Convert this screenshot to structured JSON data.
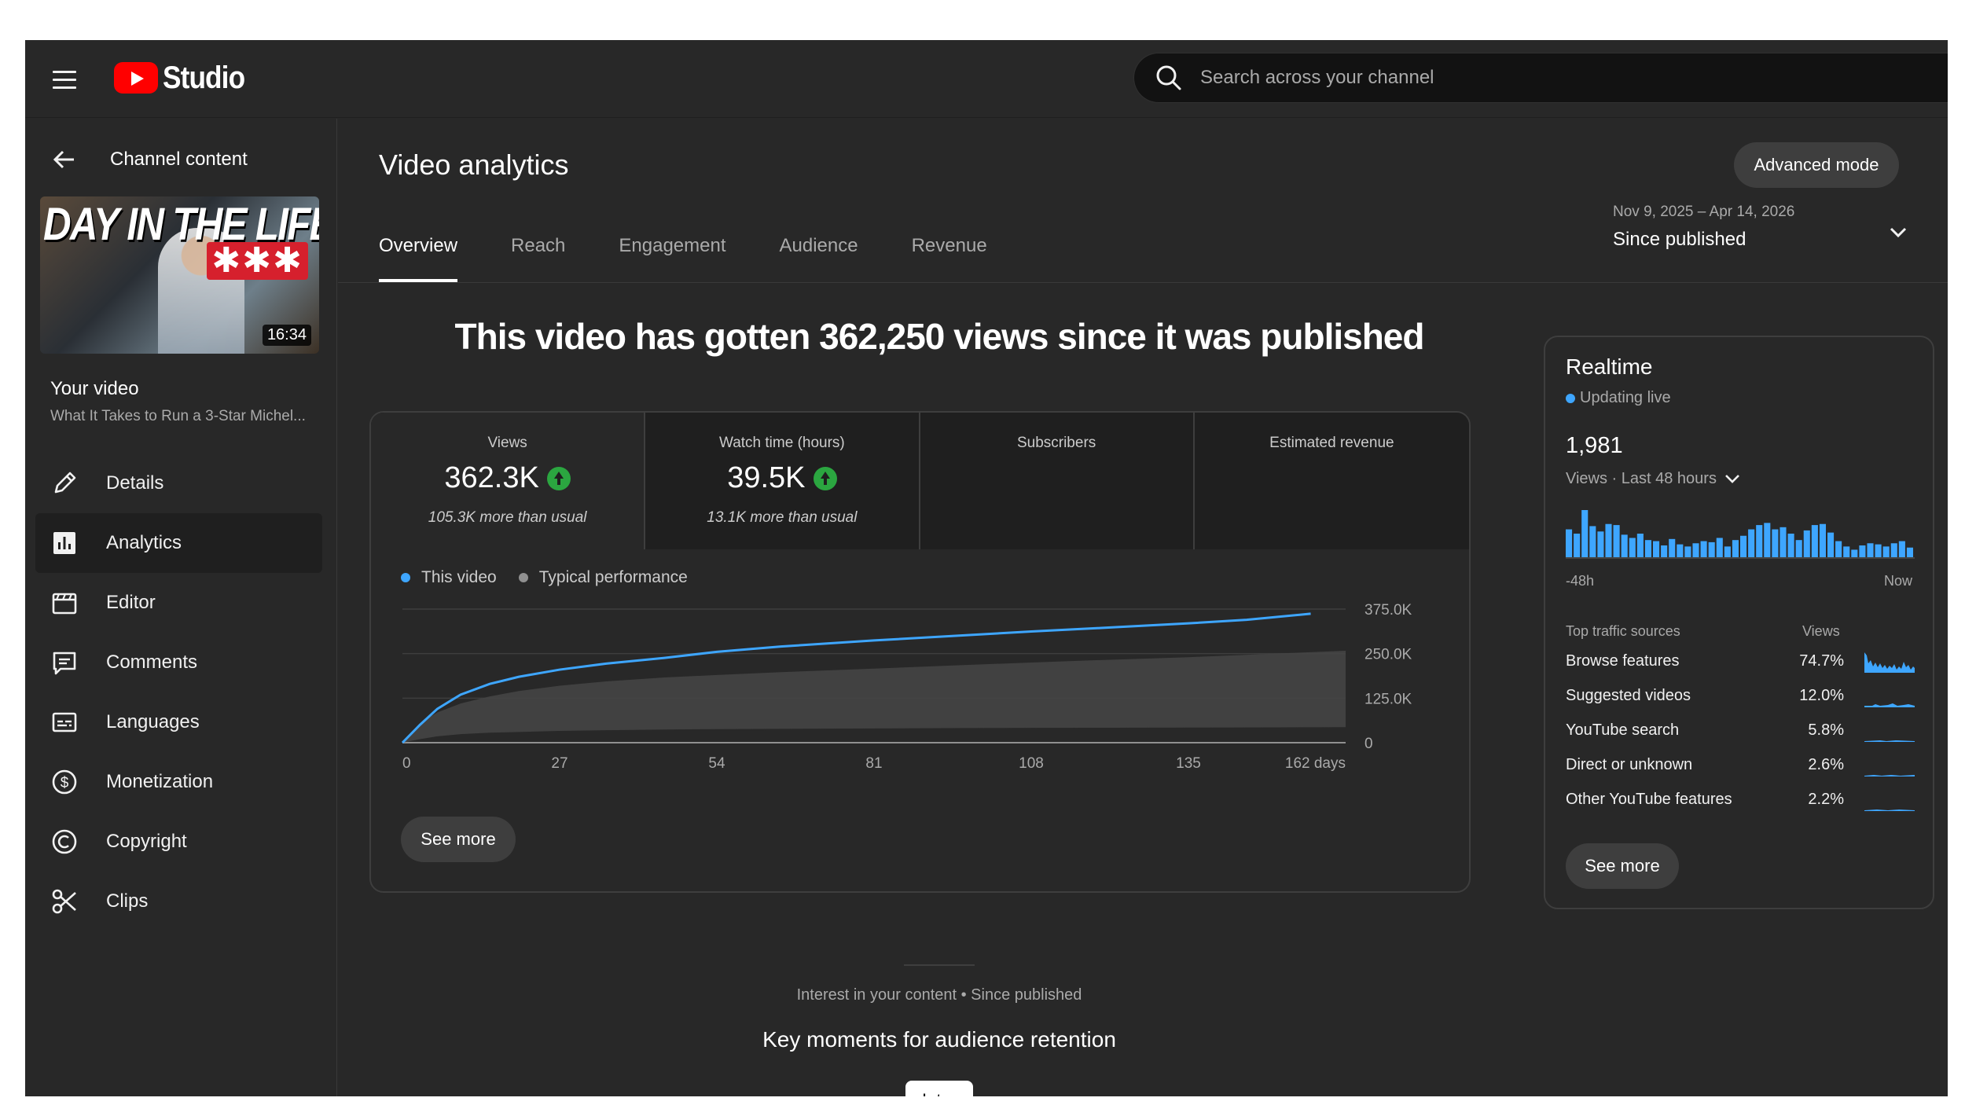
{
  "app": {
    "brand": "Studio"
  },
  "search": {
    "placeholder": "Search across your channel"
  },
  "sidebar": {
    "back_label": "Channel content",
    "thumbnail": {
      "title_text": "DAY IN THE LIFE",
      "stars": "✱✱✱",
      "duration": "16:34"
    },
    "your_video_label": "Your video",
    "video_title": "What It Takes to Run a 3-Star Michel...",
    "items": [
      {
        "label": "Details",
        "icon": "pencil-icon"
      },
      {
        "label": "Analytics",
        "icon": "analytics-icon",
        "active": true
      },
      {
        "label": "Editor",
        "icon": "clapperboard-icon"
      },
      {
        "label": "Comments",
        "icon": "comment-icon"
      },
      {
        "label": "Languages",
        "icon": "subtitles-icon"
      },
      {
        "label": "Monetization",
        "icon": "dollar-icon"
      },
      {
        "label": "Copyright",
        "icon": "copyright-icon"
      },
      {
        "label": "Clips",
        "icon": "scissors-icon"
      }
    ]
  },
  "header": {
    "title": "Video analytics",
    "advanced_mode": "Advanced mode",
    "tabs": [
      "Overview",
      "Reach",
      "Engagement",
      "Audience",
      "Revenue"
    ],
    "date_range": "Nov 9, 2025 – Apr 14, 2026",
    "date_label": "Since published"
  },
  "overview": {
    "headline": "This video has gotten 362,250 views since it was published",
    "metrics": [
      {
        "label": "Views",
        "value": "362.3K",
        "trend": "up",
        "sub": "105.3K more than usual"
      },
      {
        "label": "Watch time (hours)",
        "value": "39.5K",
        "trend": "up",
        "sub": "13.1K more than usual"
      },
      {
        "label": "Subscribers",
        "value": "",
        "sub": ""
      },
      {
        "label": "Estimated revenue",
        "value": "",
        "sub": ""
      }
    ],
    "legend": {
      "this_video": "This video",
      "typical": "Typical performance"
    },
    "see_more": "See more"
  },
  "chart_data": {
    "type": "line",
    "x_ticks": [
      "0",
      "27",
      "54",
      "81",
      "108",
      "135",
      "162 days"
    ],
    "y_ticks": [
      "375.0K",
      "250.0K",
      "125.0K",
      "0"
    ],
    "ylim": [
      0,
      375000
    ],
    "xlim": [
      0,
      162
    ],
    "grid": true,
    "legend_position": "top-left",
    "series": [
      {
        "name": "This video",
        "color": "#3ea6ff",
        "x": [
          0,
          3,
          6,
          10,
          15,
          20,
          27,
          35,
          45,
          54,
          65,
          81,
          95,
          108,
          120,
          135,
          145,
          156
        ],
        "y": [
          0,
          50000,
          95000,
          135000,
          165000,
          185000,
          205000,
          222000,
          238000,
          255000,
          270000,
          287000,
          300000,
          312000,
          322000,
          335000,
          345000,
          362000
        ]
      },
      {
        "name": "Typical performance",
        "color": "#555555",
        "x": [
          0,
          3,
          6,
          10,
          15,
          20,
          27,
          35,
          45,
          54,
          65,
          81,
          95,
          108,
          120,
          135,
          150,
          162
        ],
        "y_low": [
          0,
          10000,
          18000,
          24000,
          28000,
          30000,
          33000,
          35000,
          37000,
          38000,
          39000,
          40000,
          41000,
          41500,
          42000,
          42500,
          43000,
          43500
        ],
        "y_high": [
          0,
          55000,
          85000,
          110000,
          130000,
          145000,
          160000,
          172000,
          183000,
          190000,
          198000,
          208000,
          217000,
          225000,
          232000,
          240000,
          250000,
          258000
        ]
      }
    ]
  },
  "realtime": {
    "title": "Realtime",
    "live_label": "Updating live",
    "count": "1,981",
    "period": "Views · Last 48 hours",
    "bar_color": "#3ea6ff",
    "hourly_views": [
      52,
      44,
      88,
      58,
      48,
      62,
      60,
      42,
      36,
      44,
      32,
      30,
      22,
      34,
      24,
      20,
      26,
      30,
      28,
      36,
      20,
      32,
      40,
      52,
      60,
      64,
      52,
      56,
      44,
      32,
      50,
      60,
      62,
      46,
      30,
      20,
      14,
      22,
      26,
      24,
      20,
      26,
      30,
      18
    ],
    "axis_left": "-48h",
    "axis_right": "Now",
    "col_source": "Top traffic sources",
    "col_views": "Views",
    "sources": [
      {
        "name": "Browse features",
        "pct": "74.7%"
      },
      {
        "name": "Suggested videos",
        "pct": "12.0%"
      },
      {
        "name": "YouTube search",
        "pct": "5.8%"
      },
      {
        "name": "Direct or unknown",
        "pct": "2.6%"
      },
      {
        "name": "Other YouTube features",
        "pct": "2.2%"
      }
    ],
    "see_more": "See more"
  },
  "retention": {
    "interest_line": "Interest in your content • Since published",
    "title": "Key moments for audience retention",
    "chip": "Intro"
  }
}
